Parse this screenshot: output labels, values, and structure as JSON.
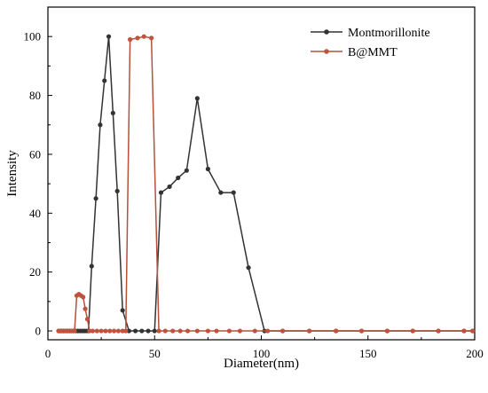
{
  "chart_data": {
    "type": "line",
    "xlabel": "Diameter(nm)",
    "ylabel": "Intensity",
    "xlim": [
      0,
      200
    ],
    "ylim": [
      -3,
      110
    ],
    "x_ticks": [
      0,
      50,
      100,
      150,
      200
    ],
    "y_ticks": [
      0,
      20,
      40,
      60,
      80,
      100
    ],
    "grid": false,
    "legend_position": "top-right",
    "series": [
      {
        "name": "Montmorillonite",
        "color": "#333333",
        "marker_color": "#333333",
        "points": [
          [
            5,
            0
          ],
          [
            6,
            0
          ],
          [
            7,
            0
          ],
          [
            8,
            0
          ],
          [
            9,
            0
          ],
          [
            10,
            0
          ],
          [
            11,
            0
          ],
          [
            12,
            0
          ],
          [
            13,
            0
          ],
          [
            14,
            0
          ],
          [
            15,
            0
          ],
          [
            16,
            0
          ],
          [
            17,
            0
          ],
          [
            18,
            0
          ],
          [
            19,
            0
          ],
          [
            20.5,
            22
          ],
          [
            22.5,
            45
          ],
          [
            24.5,
            70
          ],
          [
            26.5,
            85
          ],
          [
            28.5,
            100
          ],
          [
            30.5,
            74
          ],
          [
            32.5,
            47.5
          ],
          [
            35,
            7
          ],
          [
            38,
            0
          ],
          [
            41,
            0
          ],
          [
            44,
            0
          ],
          [
            47,
            0
          ],
          [
            50,
            0
          ],
          [
            53,
            47
          ],
          [
            57,
            49
          ],
          [
            61,
            52
          ],
          [
            65,
            54.5
          ],
          [
            70,
            79
          ],
          [
            75,
            55
          ],
          [
            81,
            47
          ],
          [
            87,
            47
          ],
          [
            94,
            21.5
          ],
          [
            101.5,
            0
          ],
          [
            110,
            0
          ],
          [
            122.5,
            0
          ],
          [
            135,
            0
          ],
          [
            147,
            0
          ],
          [
            159,
            0
          ],
          [
            171,
            0
          ],
          [
            183,
            0
          ],
          [
            195,
            0
          ],
          [
            199,
            0
          ]
        ]
      },
      {
        "name": "B@MMT",
        "color": "#b5503a",
        "marker_color": "#c0533c",
        "points": [
          [
            5,
            0
          ],
          [
            6.5,
            0
          ],
          [
            8,
            0
          ],
          [
            9.5,
            0
          ],
          [
            11,
            0
          ],
          [
            12.5,
            0
          ],
          [
            13.5,
            12
          ],
          [
            14.5,
            12.5
          ],
          [
            15.5,
            12
          ],
          [
            16.5,
            11.5
          ],
          [
            17.5,
            7.5
          ],
          [
            18.5,
            4
          ],
          [
            19.5,
            0
          ],
          [
            21,
            0
          ],
          [
            23,
            0
          ],
          [
            25,
            0
          ],
          [
            27,
            0
          ],
          [
            29,
            0
          ],
          [
            31,
            0
          ],
          [
            33,
            0
          ],
          [
            35,
            0
          ],
          [
            36.5,
            0
          ],
          [
            38.5,
            99
          ],
          [
            42,
            99.5
          ],
          [
            45,
            100
          ],
          [
            48.5,
            99.5
          ],
          [
            52,
            0
          ],
          [
            55,
            0
          ],
          [
            58.5,
            0
          ],
          [
            62,
            0
          ],
          [
            65.5,
            0
          ],
          [
            70,
            0
          ],
          [
            75,
            0
          ],
          [
            79,
            0
          ],
          [
            85,
            0
          ],
          [
            90,
            0
          ],
          [
            97,
            0
          ],
          [
            103,
            0
          ],
          [
            110,
            0
          ],
          [
            122.5,
            0
          ],
          [
            135,
            0
          ],
          [
            147,
            0
          ],
          [
            159,
            0
          ],
          [
            171,
            0
          ],
          [
            183,
            0
          ],
          [
            195,
            0
          ],
          [
            199,
            0
          ]
        ]
      }
    ]
  }
}
